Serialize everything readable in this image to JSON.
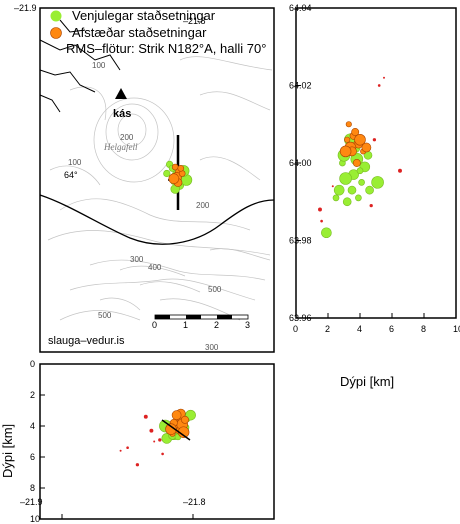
{
  "legend": {
    "normal_label": "Venjulegar staðsetningar",
    "relocated_label": "Afstæðar staðsetningar",
    "rms_label": "RMS–flötur: Strik N182°A, halli 70°"
  },
  "map": {
    "station_label": "kás",
    "place_label": "Helgafell",
    "credit": "slauga–vedur.is",
    "lon_labels": [
      "–21.9",
      "–21.8"
    ],
    "lat_label": "64°",
    "contour_labels": [
      "100",
      "100",
      "200",
      "200",
      "300",
      "400",
      "500",
      "500",
      "300"
    ],
    "scale_labels": [
      "0",
      "1",
      "2",
      "3"
    ]
  },
  "depth_axis_label": "Dýpi [km]",
  "colors": {
    "normal": "#99ee33",
    "relocated": "#ff8811",
    "small_dot": "#dd2222",
    "rms_line": "#000000",
    "contour": "#bbbbbb",
    "coast": "#000000"
  },
  "chart_data": [
    {
      "type": "scatter",
      "name": "map-view",
      "xlabel": "",
      "ylabel": "",
      "xticks": [
        "–21.9",
        "–21.8"
      ],
      "yticks": [
        "64°"
      ],
      "series": [
        {
          "name": "Venjulegar staðsetningar",
          "points": [
            [
              -21.815,
              64.012
            ],
            [
              -21.81,
              64.004
            ],
            [
              -21.806,
              64.003
            ],
            [
              -21.812,
              63.999
            ],
            [
              -21.808,
              63.996
            ],
            [
              -21.803,
              64.0
            ],
            [
              -21.817,
              64.005
            ],
            [
              -21.811,
              63.993
            ],
            [
              -21.805,
              64.007
            ],
            [
              -21.813,
              64.009
            ]
          ]
        },
        {
          "name": "Afstæðar staðsetningar",
          "points": [
            [
              -21.811,
              64.01
            ],
            [
              -21.808,
              64.006
            ],
            [
              -21.81,
              64.002
            ],
            [
              -21.806,
              64.005
            ],
            [
              -21.809,
              63.998
            ],
            [
              -21.812,
              64.001
            ],
            [
              -21.807,
              64.009
            ]
          ]
        }
      ]
    },
    {
      "type": "scatter",
      "name": "depth-vs-latitude",
      "xlabel": "Dýpi [km]",
      "ylabel": "",
      "xlim": [
        0,
        10
      ],
      "ylim": [
        63.96,
        64.04
      ],
      "xticks": [
        "0",
        "2",
        "4",
        "6",
        "8",
        "10"
      ],
      "yticks": [
        "64.04",
        "64.02",
        "64.00",
        "63.98",
        "63.96"
      ],
      "series": [
        {
          "name": "Venjulegar staðsetningar",
          "points": [
            [
              2.9,
              64.0
            ],
            [
              3.3,
              64.003
            ],
            [
              3.6,
              63.997
            ],
            [
              3.8,
              64.001
            ],
            [
              4.1,
              63.995
            ],
            [
              3.5,
              63.993
            ],
            [
              4.3,
              63.999
            ],
            [
              3.1,
              63.996
            ],
            [
              3.9,
              63.991
            ],
            [
              4.5,
              64.002
            ],
            [
              2.7,
              63.993
            ],
            [
              3.4,
              64.006
            ],
            [
              4.0,
              63.998
            ],
            [
              3.2,
              63.99
            ],
            [
              1.9,
              63.982
            ],
            [
              5.1,
              63.995
            ],
            [
              2.5,
              63.991
            ],
            [
              4.6,
              63.993
            ],
            [
              3.7,
              64.004
            ],
            [
              3.0,
              64.002
            ]
          ]
        },
        {
          "name": "Afstæðar staðsetningar",
          "points": [
            [
              3.3,
              64.01
            ],
            [
              3.6,
              64.007
            ],
            [
              3.9,
              64.005
            ],
            [
              3.4,
              64.004
            ],
            [
              4.2,
              64.003
            ],
            [
              3.8,
              64.0
            ],
            [
              3.5,
              64.003
            ],
            [
              4.0,
              64.006
            ],
            [
              3.2,
              64.006
            ],
            [
              3.7,
              64.008
            ],
            [
              4.4,
              64.004
            ],
            [
              3.1,
              64.003
            ]
          ]
        },
        {
          "name": "small",
          "points": [
            [
              5.5,
              64.022
            ],
            [
              1.6,
              63.985
            ],
            [
              4.7,
              63.989
            ],
            [
              6.5,
              63.998
            ],
            [
              2.3,
              63.994
            ],
            [
              5.2,
              64.02
            ],
            [
              4.9,
              64.006
            ],
            [
              1.5,
              63.988
            ]
          ]
        }
      ]
    },
    {
      "type": "scatter",
      "name": "longitude-vs-depth",
      "xlabel": "",
      "ylabel": "Dýpi [km]",
      "ylim": [
        0,
        10
      ],
      "xticks": [
        "–21.9",
        "–21.8"
      ],
      "yticks": [
        "0",
        "2",
        "4",
        "6",
        "8",
        "10"
      ],
      "series": [
        {
          "name": "Venjulegar staðsetningar",
          "points": [
            [
              -21.815,
              4.4
            ],
            [
              -21.81,
              4.0
            ],
            [
              -21.806,
              3.6
            ],
            [
              -21.812,
              4.5
            ],
            [
              -21.808,
              3.9
            ],
            [
              -21.803,
              3.5
            ],
            [
              -21.817,
              4.8
            ],
            [
              -21.811,
              4.2
            ],
            [
              -21.805,
              3.3
            ],
            [
              -21.813,
              4.6
            ],
            [
              -21.8,
              3.3
            ],
            [
              -21.818,
              4.0
            ],
            [
              -21.809,
              4.7
            ],
            [
              -21.804,
              4.1
            ]
          ]
        },
        {
          "name": "Afstæðar staðsetningar",
          "points": [
            [
              -21.811,
              3.7
            ],
            [
              -21.808,
              3.4
            ],
            [
              -21.81,
              4.0
            ],
            [
              -21.806,
              3.9
            ],
            [
              -21.809,
              4.3
            ],
            [
              -21.812,
              3.8
            ],
            [
              -21.807,
              3.2
            ],
            [
              -21.805,
              4.4
            ],
            [
              -21.813,
              4.5
            ],
            [
              -21.804,
              3.6
            ],
            [
              -21.81,
              3.3
            ],
            [
              -21.814,
              4.2
            ]
          ]
        },
        {
          "name": "small",
          "points": [
            [
              -21.85,
              5.6
            ],
            [
              -21.845,
              5.4
            ],
            [
              -21.838,
              6.5
            ],
            [
              -21.832,
              3.4
            ],
            [
              -21.826,
              5.0
            ],
            [
              -21.82,
              5.8
            ],
            [
              -21.822,
              4.9
            ],
            [
              -21.828,
              4.3
            ]
          ]
        }
      ]
    }
  ]
}
